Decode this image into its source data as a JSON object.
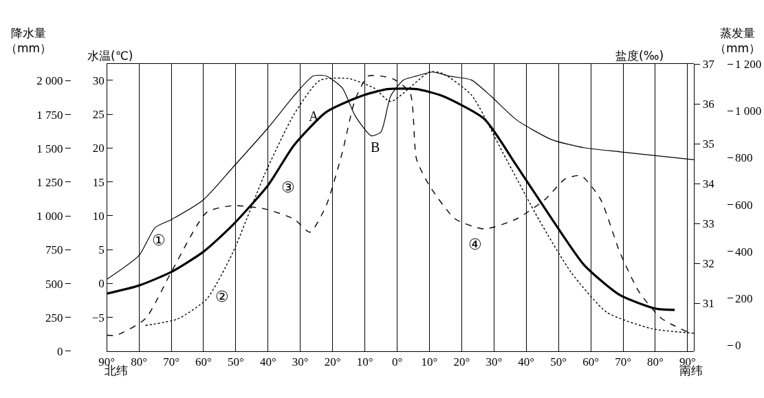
{
  "chart_data": [
    {
      "type": "line",
      "ylabel": "降水量（mm）",
      "y2label": "水温(℃)",
      "xlim": [
        90,
        -92
      ],
      "xticks": [
        {
          "value": 90,
          "label": "90°"
        },
        {
          "value": 80,
          "label": "80°"
        },
        {
          "value": 70,
          "label": "70°"
        },
        {
          "value": 60,
          "label": "60°"
        },
        {
          "value": 50,
          "label": "50°"
        },
        {
          "value": 40,
          "label": "40°"
        },
        {
          "value": 30,
          "label": "30°"
        },
        {
          "value": 20,
          "label": "20°"
        },
        {
          "value": 10,
          "label": "10°"
        },
        {
          "value": 0,
          "label": "0°"
        },
        {
          "value": -10,
          "label": "10°"
        },
        {
          "value": -20,
          "label": "20°"
        },
        {
          "value": -30,
          "label": "30°"
        },
        {
          "value": -40,
          "label": "40°"
        },
        {
          "value": -50,
          "label": "50°"
        },
        {
          "value": -60,
          "label": "60°"
        },
        {
          "value": -70,
          "label": "70°"
        },
        {
          "value": -80,
          "label": "80°"
        },
        {
          "value": -90,
          "label": "90°"
        }
      ],
      "ylim": [
        0,
        2123
      ],
      "yticks": [
        0,
        250,
        500,
        750,
        {
          "value": 1000,
          "label": "1 000"
        },
        {
          "value": 1250,
          "label": "1 250"
        },
        {
          "value": 1500,
          "label": "1 500"
        },
        {
          "value": 1750,
          "label": "1 750"
        },
        {
          "value": 2000,
          "label": "2 000"
        }
      ],
      "y2lim": [
        -10,
        32.4
      ],
      "y2ticks": [
        {
          "value": -5,
          "label": "−5"
        },
        0,
        5,
        10,
        15,
        20,
        25,
        30
      ],
      "grid": "x",
      "marker": "none",
      "series": [
        {
          "color": "#000000",
          "line_style": "solid",
          "axis": "y2",
          "x": [
            90,
            80,
            70,
            60,
            51,
            40,
            32,
            22,
            11,
            3,
            -6,
            -14,
            -27,
            -37,
            -48,
            -58,
            -69,
            -80,
            -86
          ],
          "values": [
            -1.5,
            -0.3,
            1.7,
            4.7,
            8.6,
            14.5,
            20.4,
            25.3,
            27.7,
            28.7,
            28.7,
            27.7,
            24.3,
            17.4,
            9.5,
            2.7,
            -1.7,
            -3.7,
            -3.9
          ]
        },
        {
          "color": "#000000",
          "line_style": "dashed",
          "x": [
            90,
            87,
            78,
            70,
            59,
            51,
            41,
            32,
            27,
            22,
            17,
            13,
            9,
            5,
            1,
            -4,
            -6,
            -10,
            -18,
            -27,
            -37,
            -46,
            -52,
            -57,
            -63,
            -69,
            -75,
            -82,
            -90
          ],
          "values": [
            118,
            118,
            241,
            585,
            1027,
            1076,
            1052,
            978,
            880,
            1076,
            1469,
            1862,
            2034,
            2034,
            2010,
            1911,
            1420,
            1224,
            978,
            904,
            978,
            1125,
            1273,
            1297,
            1125,
            732,
            437,
            241,
            143
          ]
        }
      ],
      "annotations": [
        "北纬",
        "南纬",
        "①",
        "②",
        "③",
        "④",
        "A",
        "B"
      ]
    },
    {
      "type": "line",
      "ylabel": "盐度(‰)",
      "y2label": "蒸发量（mm）",
      "xlim": [
        90,
        -92
      ],
      "tick_labels": "y",
      "ylim": [
        29.8,
        37
      ],
      "yticks": [
        31,
        32,
        33,
        34,
        35,
        36,
        37
      ],
      "y2lim": [
        -26,
        1200
      ],
      "y2ticks": [
        0,
        200,
        400,
        600,
        800,
        {
          "value": 1000,
          "label": "1 000"
        },
        {
          "value": 1200,
          "label": "1 200"
        }
      ],
      "marker": "none",
      "series": [
        {
          "color": "#000000",
          "line_style": "solid",
          "x": [
            90,
            80,
            75,
            70,
            60,
            51,
            40,
            32,
            26,
            22,
            17,
            13,
            8,
            5,
            2,
            -2,
            -6,
            -11,
            -16,
            -23,
            -29,
            -37,
            -48,
            -58,
            -69,
            -92
          ],
          "values": [
            31.6,
            32.2,
            32.9,
            33.1,
            33.6,
            34.4,
            35.4,
            36.2,
            36.7,
            36.7,
            36.4,
            35.7,
            35.2,
            35.3,
            36.2,
            36.6,
            36.7,
            36.8,
            36.7,
            36.6,
            36.2,
            35.6,
            35.1,
            34.9,
            34.8,
            34.6
          ]
        },
        {
          "color": "#000000",
          "line_style": "dotted",
          "axis": "y2",
          "x": [
            78,
            68,
            59,
            51,
            41,
            32,
            24,
            15,
            7,
            2,
            -10,
            -14,
            -23,
            -33,
            -44,
            -54,
            -65,
            -79,
            -92
          ],
          "values": [
            84,
            112,
            197,
            393,
            731,
            984,
            1130,
            1138,
            1096,
            1040,
            1166,
            1160,
            1068,
            815,
            534,
            309,
            140,
            70,
            51
          ]
        }
      ]
    }
  ]
}
